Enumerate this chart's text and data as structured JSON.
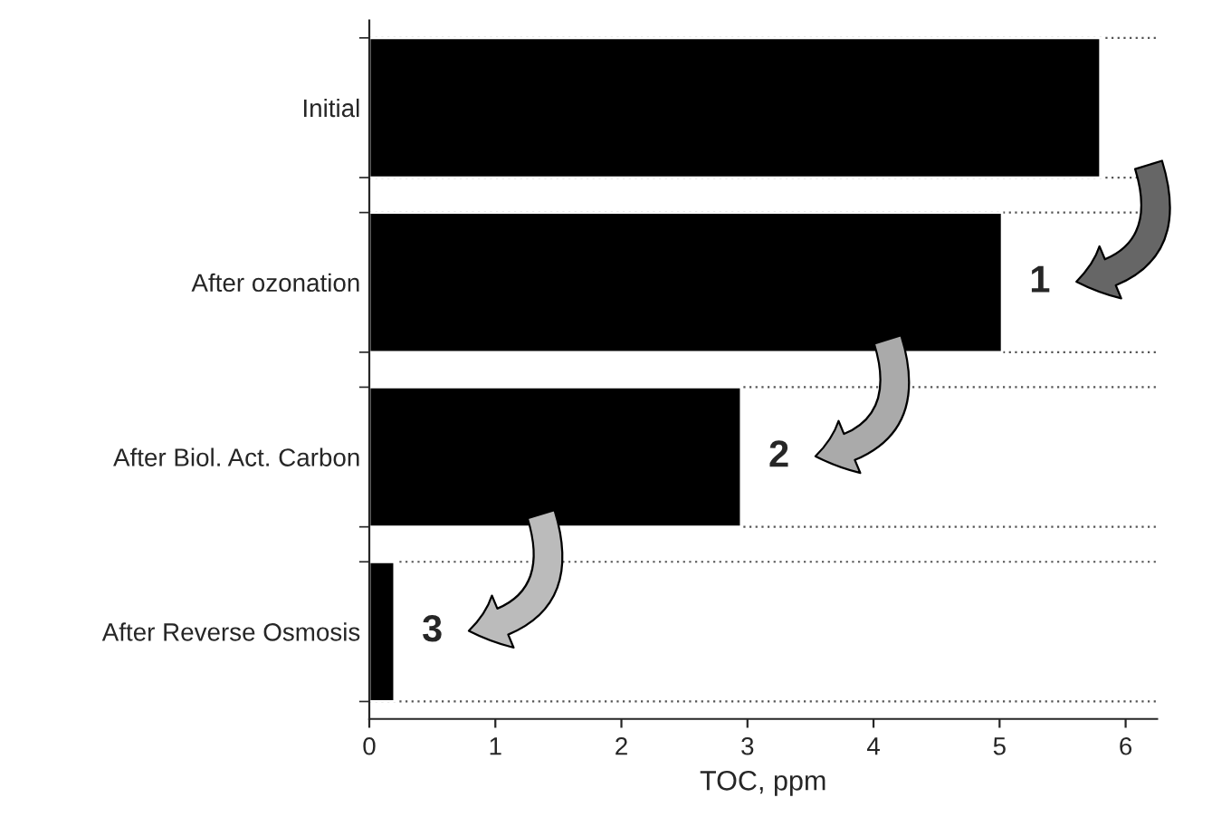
{
  "chart_data": {
    "type": "bar",
    "orientation": "horizontal",
    "xlabel": "TOC, ppm",
    "categories": [
      "Initial",
      "After ozonation",
      "After Biol. Act. Carbon",
      "After Reverse Osmosis"
    ],
    "values": [
      5.8,
      5.02,
      2.95,
      0.2
    ],
    "color": "#000000",
    "xlim": [
      0,
      6.25
    ],
    "xticks": [
      0,
      1,
      2,
      3,
      4,
      5,
      6
    ],
    "grid": "y",
    "annotations": [
      "1",
      "2",
      "3"
    ]
  }
}
